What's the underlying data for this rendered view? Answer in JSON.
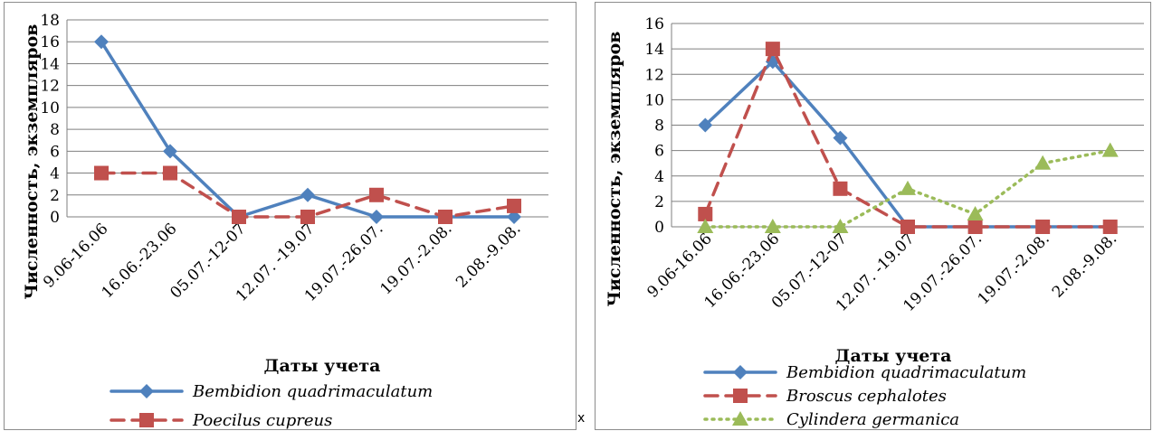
{
  "chart_data": [
    {
      "type": "line",
      "categories": [
        "9.06-16.06",
        "16.06.-23.06",
        "05.07.-12-07",
        "12.07. -19.07",
        "19.07.-26.07.",
        "19.07.-2.08.",
        "2.08.-9.08."
      ],
      "ylabel": "Численность, экземпляров",
      "xlabel": "Даты учета",
      "ylim": [
        0,
        18
      ],
      "yticks": [
        0,
        2,
        4,
        6,
        8,
        10,
        12,
        14,
        16,
        18
      ],
      "grid": true,
      "legend_position": "bottom",
      "series": [
        {
          "name": "Bembidion quadrimaculatum",
          "values": [
            16,
            6,
            0,
            2,
            0,
            0,
            0
          ],
          "color": "#4f81bd",
          "style": "solid",
          "marker": "diamond"
        },
        {
          "name": "Poecilus cupreus",
          "values": [
            4,
            4,
            0,
            0,
            2,
            0,
            1
          ],
          "color": "#c0504d",
          "style": "dashed",
          "marker": "square"
        }
      ]
    },
    {
      "type": "line",
      "categories": [
        "9.06-16.06",
        "16.06.-23.06",
        "05.07.-12-07",
        "12.07. -19.07",
        "19.07.-26.07.",
        "19.07.-2.08.",
        "2.08.-9.08."
      ],
      "ylabel": "Численность, экземпляров",
      "xlabel": "Даты учета",
      "ylim": [
        0,
        16
      ],
      "yticks": [
        0,
        2,
        4,
        6,
        8,
        10,
        12,
        14,
        16
      ],
      "grid": true,
      "legend_position": "bottom",
      "series": [
        {
          "name": "Bembidion quadrimaculatum",
          "values": [
            8,
            13,
            7,
            0,
            0,
            0,
            0
          ],
          "color": "#4f81bd",
          "style": "solid",
          "marker": "diamond"
        },
        {
          "name": "Broscus cephalotes",
          "values": [
            1,
            14,
            3,
            0,
            0,
            0,
            0
          ],
          "color": "#c0504d",
          "style": "dashed",
          "marker": "square"
        },
        {
          "name": "Cylindera germanica",
          "values": [
            0,
            0,
            0,
            3,
            1,
            5,
            6
          ],
          "color": "#9bbb59",
          "style": "dotted",
          "marker": "triangle"
        }
      ]
    }
  ],
  "stray_mark": "x"
}
